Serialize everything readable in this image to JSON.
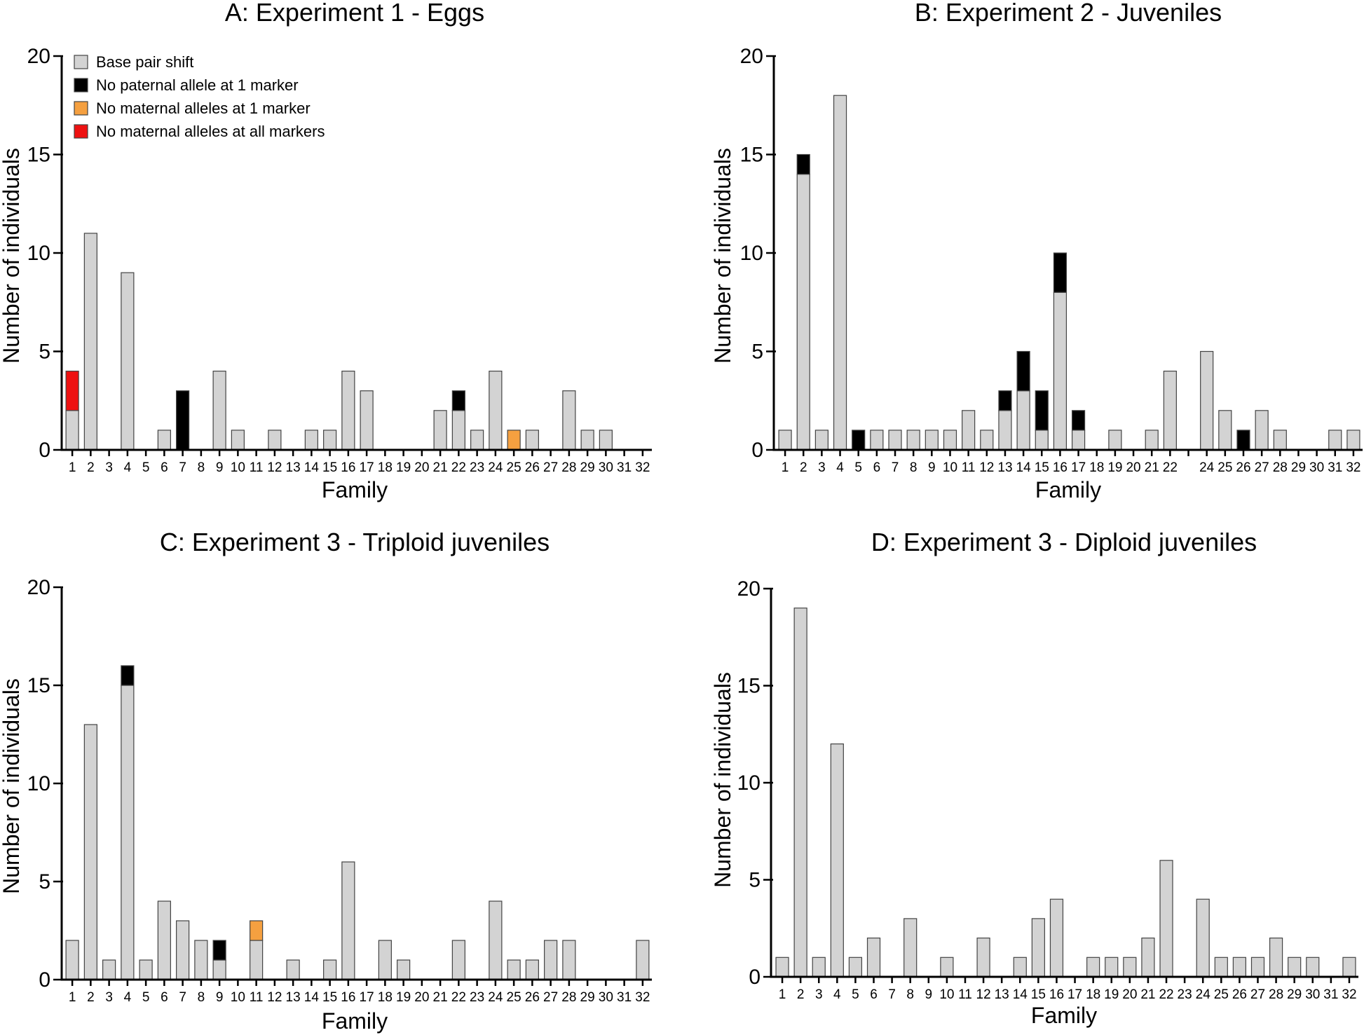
{
  "categories": {
    "base": "Base pair shift",
    "paternal": "No paternal allele at 1 marker",
    "maternal1": "No maternal alleles at 1 marker",
    "maternalAll": "No maternal alleles at all markers"
  },
  "colors": {
    "base": "#d3d3d3",
    "paternal": "#000000",
    "maternal1": "#f5a040",
    "maternalAll": "#ee1111"
  },
  "chart_data": [
    {
      "id": "A",
      "type": "bar",
      "stacked": true,
      "title": "A: Experiment 1 - Eggs",
      "xlabel": "Family",
      "ylabel": "Number of individuals",
      "ylim": [
        0,
        20
      ],
      "yticks": [
        0,
        5,
        10,
        15,
        20
      ],
      "legend": "top-left",
      "categories": [
        "1",
        "2",
        "3",
        "4",
        "5",
        "6",
        "7",
        "8",
        "9",
        "10",
        "11",
        "12",
        "13",
        "14",
        "15",
        "16",
        "17",
        "18",
        "19",
        "20",
        "21",
        "22",
        "23",
        "24",
        "25",
        "26",
        "27",
        "28",
        "29",
        "30",
        "31",
        "32"
      ],
      "series": [
        {
          "key": "base",
          "name": "Base pair shift",
          "values": [
            2,
            11,
            0,
            9,
            0,
            1,
            0,
            0,
            4,
            1,
            0,
            1,
            0,
            1,
            1,
            4,
            3,
            0,
            0,
            0,
            2,
            2,
            1,
            4,
            0,
            1,
            0,
            3,
            1,
            1,
            0,
            0
          ]
        },
        {
          "key": "paternal",
          "name": "No paternal allele at 1 marker",
          "values": [
            0,
            0,
            0,
            0,
            0,
            0,
            3,
            0,
            0,
            0,
            0,
            0,
            0,
            0,
            0,
            0,
            0,
            0,
            0,
            0,
            0,
            1,
            0,
            0,
            0,
            0,
            0,
            0,
            0,
            0,
            0,
            0
          ]
        },
        {
          "key": "maternal1",
          "name": "No maternal alleles at 1 marker",
          "values": [
            0,
            0,
            0,
            0,
            0,
            0,
            0,
            0,
            0,
            0,
            0,
            0,
            0,
            0,
            0,
            0,
            0,
            0,
            0,
            0,
            0,
            0,
            0,
            0,
            1,
            0,
            0,
            0,
            0,
            0,
            0,
            0
          ]
        },
        {
          "key": "maternalAll",
          "name": "No maternal alleles at all markers",
          "values": [
            2,
            0,
            0,
            0,
            0,
            0,
            0,
            0,
            0,
            0,
            0,
            0,
            0,
            0,
            0,
            0,
            0,
            0,
            0,
            0,
            0,
            0,
            0,
            0,
            0,
            0,
            0,
            0,
            0,
            0,
            0,
            0
          ]
        }
      ]
    },
    {
      "id": "B",
      "type": "bar",
      "stacked": true,
      "title": "B: Experiment 2 - Juveniles",
      "xlabel": "Family",
      "ylabel": "Number of individuals",
      "ylim": [
        0,
        20
      ],
      "yticks": [
        0,
        5,
        10,
        15,
        20
      ],
      "categories": [
        "1",
        "2",
        "3",
        "4",
        "5",
        "6",
        "7",
        "8",
        "9",
        "10",
        "11",
        "12",
        "13",
        "14",
        "15",
        "16",
        "17",
        "18",
        "19",
        "20",
        "21",
        "22",
        "",
        "24",
        "25",
        "26",
        "27",
        "28",
        "29",
        "30",
        "31",
        "32"
      ],
      "series": [
        {
          "key": "base",
          "name": "Base pair shift",
          "values": [
            1,
            14,
            1,
            18,
            0,
            1,
            1,
            1,
            1,
            1,
            2,
            1,
            2,
            3,
            1,
            8,
            1,
            0,
            1,
            0,
            1,
            4,
            0,
            5,
            2,
            0,
            2,
            1,
            0,
            0,
            1,
            1
          ]
        },
        {
          "key": "paternal",
          "name": "No paternal allele at 1 marker",
          "values": [
            0,
            1,
            0,
            0,
            1,
            0,
            0,
            0,
            0,
            0,
            0,
            0,
            1,
            2,
            2,
            2,
            1,
            0,
            0,
            0,
            0,
            0,
            0,
            0,
            0,
            1,
            0,
            0,
            0,
            0,
            0,
            0
          ]
        }
      ]
    },
    {
      "id": "C",
      "type": "bar",
      "stacked": true,
      "title": "C: Experiment 3 - Triploid juveniles",
      "xlabel": "Family",
      "ylabel": "Number of individuals",
      "ylim": [
        0,
        20
      ],
      "yticks": [
        0,
        5,
        10,
        15,
        20
      ],
      "categories": [
        "1",
        "2",
        "3",
        "4",
        "5",
        "6",
        "7",
        "8",
        "9",
        "10",
        "11",
        "12",
        "13",
        "14",
        "15",
        "16",
        "17",
        "18",
        "19",
        "20",
        "21",
        "22",
        "23",
        "24",
        "25",
        "26",
        "27",
        "28",
        "29",
        "30",
        "31",
        "32"
      ],
      "series": [
        {
          "key": "base",
          "name": "Base pair shift",
          "values": [
            2,
            13,
            1,
            15,
            1,
            4,
            3,
            2,
            1,
            0,
            2,
            0,
            1,
            0,
            1,
            6,
            0,
            2,
            1,
            0,
            0,
            2,
            0,
            4,
            1,
            1,
            2,
            2,
            0,
            0,
            0,
            2
          ]
        },
        {
          "key": "paternal",
          "name": "No paternal allele at 1 marker",
          "values": [
            0,
            0,
            0,
            1,
            0,
            0,
            0,
            0,
            1,
            0,
            0,
            0,
            0,
            0,
            0,
            0,
            0,
            0,
            0,
            0,
            0,
            0,
            0,
            0,
            0,
            0,
            0,
            0,
            0,
            0,
            0,
            0
          ]
        },
        {
          "key": "maternal1",
          "name": "No maternal alleles at 1 marker",
          "values": [
            0,
            0,
            0,
            0,
            0,
            0,
            0,
            0,
            0,
            0,
            1,
            0,
            0,
            0,
            0,
            0,
            0,
            0,
            0,
            0,
            0,
            0,
            0,
            0,
            0,
            0,
            0,
            0,
            0,
            0,
            0,
            0
          ]
        }
      ]
    },
    {
      "id": "D",
      "type": "bar",
      "stacked": true,
      "title": "D: Experiment 3 - Diploid juveniles",
      "xlabel": "Family",
      "ylabel": "Number of individuals",
      "ylim": [
        0,
        20
      ],
      "yticks": [
        0,
        5,
        10,
        15,
        20
      ],
      "categories": [
        "1",
        "2",
        "3",
        "4",
        "5",
        "6",
        "7",
        "8",
        "9",
        "10",
        "11",
        "12",
        "13",
        "14",
        "15",
        "16",
        "17",
        "18",
        "19",
        "20",
        "21",
        "22",
        "23",
        "24",
        "25",
        "26",
        "27",
        "28",
        "29",
        "30",
        "31",
        "32"
      ],
      "series": [
        {
          "key": "base",
          "name": "Base pair shift",
          "values": [
            1,
            19,
            1,
            12,
            1,
            2,
            0,
            3,
            0,
            1,
            0,
            2,
            0,
            1,
            3,
            4,
            0,
            1,
            1,
            1,
            2,
            6,
            0,
            4,
            1,
            1,
            1,
            2,
            1,
            1,
            0,
            1
          ]
        }
      ]
    }
  ]
}
